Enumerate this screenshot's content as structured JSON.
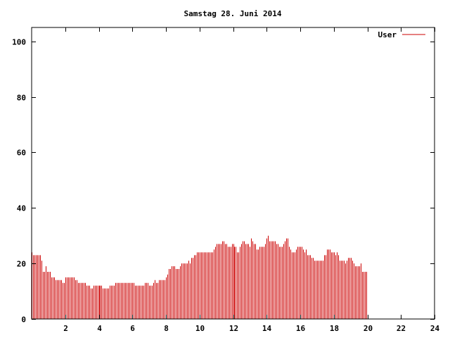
{
  "chart_data": {
    "type": "bar",
    "title": "Samstag 28. Juni 2014",
    "xlabel": "",
    "ylabel": "",
    "xlim": [
      0,
      24
    ],
    "ylim": [
      0,
      105
    ],
    "x_ticks": [
      2,
      4,
      6,
      8,
      10,
      12,
      14,
      16,
      18,
      20,
      22,
      24
    ],
    "x_tick_labels": [
      "2",
      "4",
      "6",
      "8",
      "10",
      "12",
      "14",
      "16",
      "18",
      "20",
      "22",
      "24"
    ],
    "y_ticks": [
      0,
      20,
      40,
      60,
      80,
      100
    ],
    "y_tick_labels": [
      "0",
      "20",
      "40",
      "60",
      "80",
      "100"
    ],
    "grid": false,
    "legend_position": "top-right",
    "series": [
      {
        "name": "User",
        "color": "#cc0000",
        "interval_minutes": 5,
        "values": [
          24,
          23,
          23,
          23,
          23,
          23,
          23,
          21,
          17,
          17,
          19,
          17,
          17,
          17,
          15,
          15,
          15,
          14,
          14,
          14,
          14,
          14,
          13,
          13,
          15,
          15,
          15,
          15,
          15,
          15,
          15,
          14,
          14,
          13,
          13,
          13,
          13,
          13,
          13,
          12,
          12,
          12,
          11,
          11,
          12,
          12,
          12,
          12,
          12,
          12,
          12,
          11,
          11,
          11,
          11,
          11,
          12,
          12,
          12,
          12,
          13,
          13,
          13,
          13,
          13,
          13,
          13,
          13,
          13,
          13,
          13,
          13,
          13,
          13,
          12,
          12,
          12,
          12,
          12,
          12,
          12,
          13,
          13,
          13,
          12,
          12,
          12,
          13,
          14,
          13,
          13,
          14,
          14,
          14,
          14,
          14,
          15,
          16,
          18,
          18,
          19,
          19,
          19,
          18,
          18,
          18,
          19,
          20,
          20,
          20,
          20,
          20,
          21,
          20,
          22,
          22,
          23,
          23,
          24,
          24,
          24,
          24,
          24,
          24,
          24,
          24,
          24,
          24,
          24,
          24,
          25,
          26,
          27,
          27,
          27,
          27,
          28,
          28,
          27,
          27,
          26,
          26,
          26,
          27,
          27,
          26,
          26,
          24,
          24,
          26,
          27,
          28,
          28,
          27,
          27,
          27,
          26,
          29,
          28,
          27,
          27,
          25,
          25,
          26,
          26,
          26,
          26,
          27,
          29,
          30,
          28,
          28,
          28,
          28,
          28,
          27,
          27,
          26,
          26,
          26,
          27,
          28,
          29,
          29,
          26,
          25,
          24,
          24,
          24,
          25,
          26,
          26,
          26,
          26,
          25,
          24,
          25,
          23,
          23,
          23,
          22,
          22,
          21,
          21,
          21,
          21,
          21,
          21,
          21,
          23,
          23,
          25,
          25,
          25,
          24,
          24,
          24,
          23,
          24,
          23,
          21,
          21,
          21,
          21,
          20,
          21,
          22,
          22,
          22,
          21,
          20,
          19,
          19,
          19,
          19,
          20,
          17,
          17,
          17,
          17
        ]
      }
    ]
  }
}
